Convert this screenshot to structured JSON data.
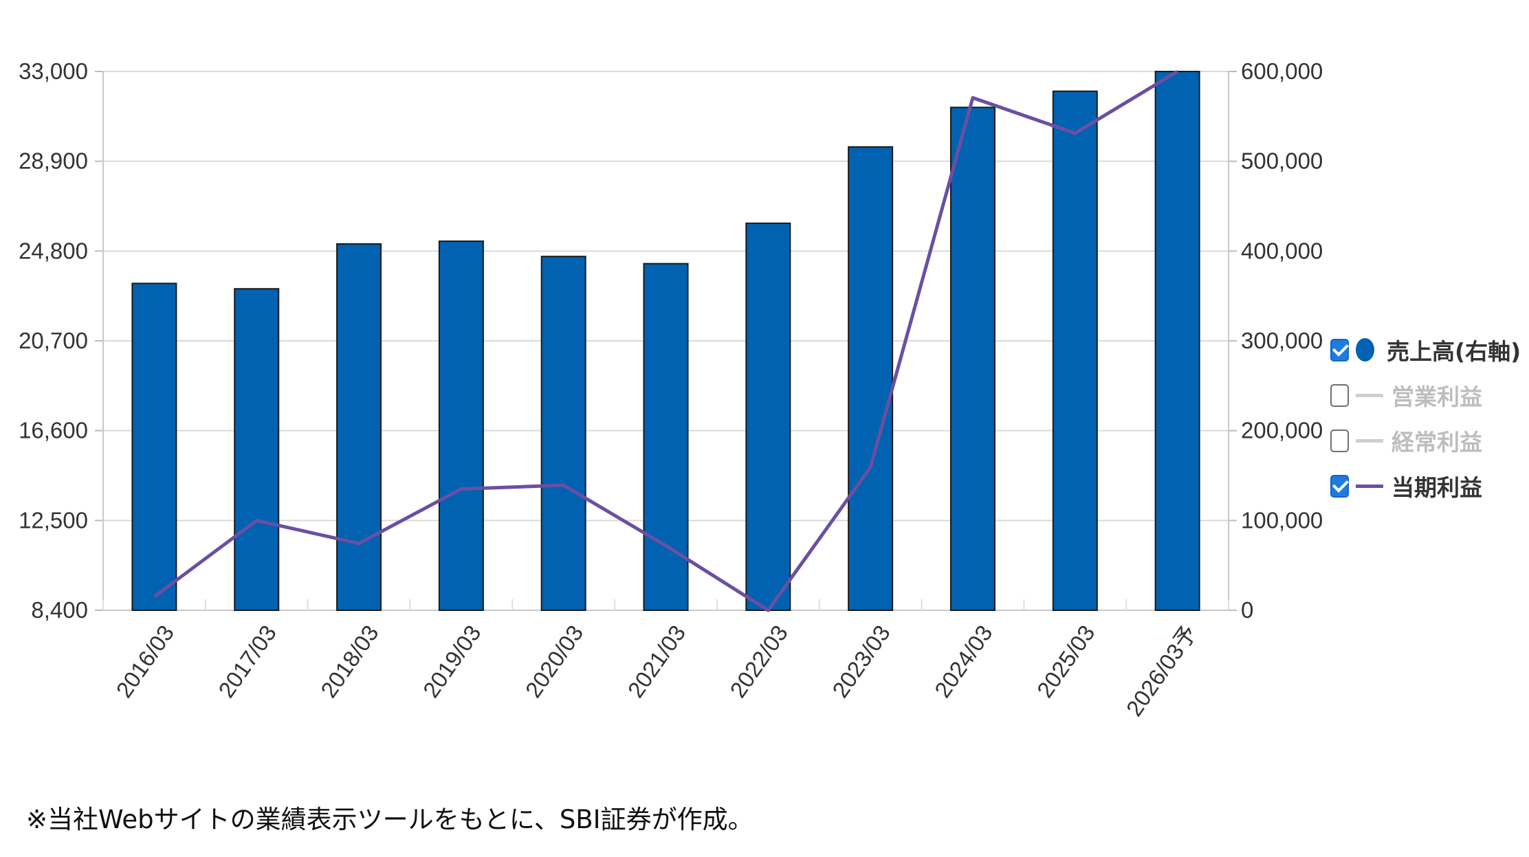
{
  "chart_data": {
    "type": "bar",
    "categories": [
      "2016/03",
      "2017/03",
      "2018/03",
      "2019/03",
      "2020/03",
      "2021/03",
      "2022/03",
      "2023/03",
      "2024/03",
      "2025/03",
      "2026/03予"
    ],
    "y_left": {
      "range": [
        8400,
        33000
      ],
      "ticks": [
        "33,000",
        "28,900",
        "24,800",
        "20,700",
        "16,600",
        "12,500",
        "8,400"
      ]
    },
    "y_right": {
      "range": [
        0,
        600000
      ],
      "ticks": [
        "600,000",
        "500,000",
        "400,000",
        "300,000",
        "200,000",
        "100,000",
        "0"
      ]
    },
    "series": [
      {
        "name": "売上高(右軸)",
        "type": "bar",
        "axis": "right",
        "color": "#0062b0",
        "values": [
          364000,
          358000,
          408000,
          411000,
          394000,
          386000,
          431000,
          516000,
          560000,
          578000,
          600000
        ]
      },
      {
        "name": "当期利益",
        "type": "line",
        "axis": "left",
        "color": "#6a4fa3",
        "values": [
          9020,
          12500,
          11450,
          13940,
          14110,
          11350,
          8400,
          14930,
          31800,
          30180,
          33000
        ]
      }
    ],
    "grid": true
  },
  "legend": {
    "items": [
      {
        "label": "売上高(右軸)",
        "checked": true,
        "marker": "dot",
        "color": "#0062b0"
      },
      {
        "label": "営業利益",
        "checked": false,
        "marker": "line",
        "color": "#cfcfcf"
      },
      {
        "label": "経常利益",
        "checked": false,
        "marker": "line",
        "color": "#cfcfcf"
      },
      {
        "label": "当期利益",
        "checked": true,
        "marker": "line",
        "color": "#6a4fa3"
      }
    ]
  },
  "footnote": "※当社Webサイトの業績表示ツールをもとに、SBI証券が作成。"
}
